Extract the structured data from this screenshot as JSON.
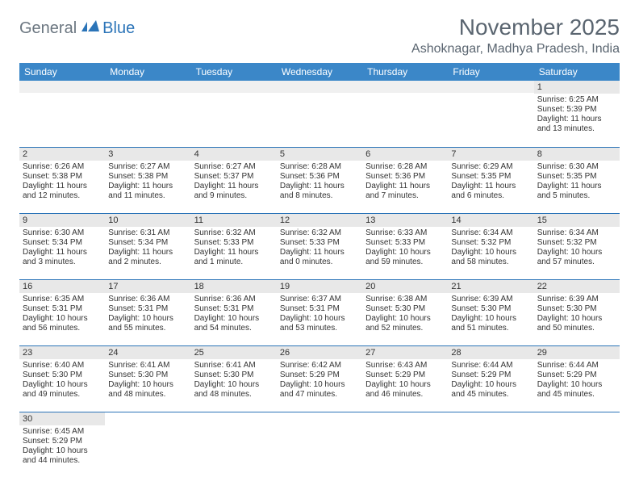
{
  "logo": {
    "general": "General",
    "blue": "Blue"
  },
  "title": "November 2025",
  "location": "Ashoknagar, Madhya Pradesh, India",
  "colors": {
    "header_bg": "#3b87c8",
    "header_text": "#ffffff",
    "border": "#2b74b8",
    "daynum_bg": "#e8e8e8",
    "logo_gray": "#6b7680",
    "logo_blue": "#2b74b8",
    "title_color": "#5a6570",
    "body_text": "#333333",
    "page_bg": "#ffffff"
  },
  "typography": {
    "title_fontsize": 28,
    "location_fontsize": 16,
    "header_fontsize": 12,
    "daynum_fontsize": 11,
    "body_fontsize": 10,
    "logo_fontsize": 20
  },
  "day_headers": [
    "Sunday",
    "Monday",
    "Tuesday",
    "Wednesday",
    "Thursday",
    "Friday",
    "Saturday"
  ],
  "weeks": [
    [
      null,
      null,
      null,
      null,
      null,
      null,
      {
        "n": "1",
        "sr": "Sunrise: 6:25 AM",
        "ss": "Sunset: 5:39 PM",
        "dl": "Daylight: 11 hours and 13 minutes."
      }
    ],
    [
      {
        "n": "2",
        "sr": "Sunrise: 6:26 AM",
        "ss": "Sunset: 5:38 PM",
        "dl": "Daylight: 11 hours and 12 minutes."
      },
      {
        "n": "3",
        "sr": "Sunrise: 6:27 AM",
        "ss": "Sunset: 5:38 PM",
        "dl": "Daylight: 11 hours and 11 minutes."
      },
      {
        "n": "4",
        "sr": "Sunrise: 6:27 AM",
        "ss": "Sunset: 5:37 PM",
        "dl": "Daylight: 11 hours and 9 minutes."
      },
      {
        "n": "5",
        "sr": "Sunrise: 6:28 AM",
        "ss": "Sunset: 5:36 PM",
        "dl": "Daylight: 11 hours and 8 minutes."
      },
      {
        "n": "6",
        "sr": "Sunrise: 6:28 AM",
        "ss": "Sunset: 5:36 PM",
        "dl": "Daylight: 11 hours and 7 minutes."
      },
      {
        "n": "7",
        "sr": "Sunrise: 6:29 AM",
        "ss": "Sunset: 5:35 PM",
        "dl": "Daylight: 11 hours and 6 minutes."
      },
      {
        "n": "8",
        "sr": "Sunrise: 6:30 AM",
        "ss": "Sunset: 5:35 PM",
        "dl": "Daylight: 11 hours and 5 minutes."
      }
    ],
    [
      {
        "n": "9",
        "sr": "Sunrise: 6:30 AM",
        "ss": "Sunset: 5:34 PM",
        "dl": "Daylight: 11 hours and 3 minutes."
      },
      {
        "n": "10",
        "sr": "Sunrise: 6:31 AM",
        "ss": "Sunset: 5:34 PM",
        "dl": "Daylight: 11 hours and 2 minutes."
      },
      {
        "n": "11",
        "sr": "Sunrise: 6:32 AM",
        "ss": "Sunset: 5:33 PM",
        "dl": "Daylight: 11 hours and 1 minute."
      },
      {
        "n": "12",
        "sr": "Sunrise: 6:32 AM",
        "ss": "Sunset: 5:33 PM",
        "dl": "Daylight: 11 hours and 0 minutes."
      },
      {
        "n": "13",
        "sr": "Sunrise: 6:33 AM",
        "ss": "Sunset: 5:33 PM",
        "dl": "Daylight: 10 hours and 59 minutes."
      },
      {
        "n": "14",
        "sr": "Sunrise: 6:34 AM",
        "ss": "Sunset: 5:32 PM",
        "dl": "Daylight: 10 hours and 58 minutes."
      },
      {
        "n": "15",
        "sr": "Sunrise: 6:34 AM",
        "ss": "Sunset: 5:32 PM",
        "dl": "Daylight: 10 hours and 57 minutes."
      }
    ],
    [
      {
        "n": "16",
        "sr": "Sunrise: 6:35 AM",
        "ss": "Sunset: 5:31 PM",
        "dl": "Daylight: 10 hours and 56 minutes."
      },
      {
        "n": "17",
        "sr": "Sunrise: 6:36 AM",
        "ss": "Sunset: 5:31 PM",
        "dl": "Daylight: 10 hours and 55 minutes."
      },
      {
        "n": "18",
        "sr": "Sunrise: 6:36 AM",
        "ss": "Sunset: 5:31 PM",
        "dl": "Daylight: 10 hours and 54 minutes."
      },
      {
        "n": "19",
        "sr": "Sunrise: 6:37 AM",
        "ss": "Sunset: 5:31 PM",
        "dl": "Daylight: 10 hours and 53 minutes."
      },
      {
        "n": "20",
        "sr": "Sunrise: 6:38 AM",
        "ss": "Sunset: 5:30 PM",
        "dl": "Daylight: 10 hours and 52 minutes."
      },
      {
        "n": "21",
        "sr": "Sunrise: 6:39 AM",
        "ss": "Sunset: 5:30 PM",
        "dl": "Daylight: 10 hours and 51 minutes."
      },
      {
        "n": "22",
        "sr": "Sunrise: 6:39 AM",
        "ss": "Sunset: 5:30 PM",
        "dl": "Daylight: 10 hours and 50 minutes."
      }
    ],
    [
      {
        "n": "23",
        "sr": "Sunrise: 6:40 AM",
        "ss": "Sunset: 5:30 PM",
        "dl": "Daylight: 10 hours and 49 minutes."
      },
      {
        "n": "24",
        "sr": "Sunrise: 6:41 AM",
        "ss": "Sunset: 5:30 PM",
        "dl": "Daylight: 10 hours and 48 minutes."
      },
      {
        "n": "25",
        "sr": "Sunrise: 6:41 AM",
        "ss": "Sunset: 5:30 PM",
        "dl": "Daylight: 10 hours and 48 minutes."
      },
      {
        "n": "26",
        "sr": "Sunrise: 6:42 AM",
        "ss": "Sunset: 5:29 PM",
        "dl": "Daylight: 10 hours and 47 minutes."
      },
      {
        "n": "27",
        "sr": "Sunrise: 6:43 AM",
        "ss": "Sunset: 5:29 PM",
        "dl": "Daylight: 10 hours and 46 minutes."
      },
      {
        "n": "28",
        "sr": "Sunrise: 6:44 AM",
        "ss": "Sunset: 5:29 PM",
        "dl": "Daylight: 10 hours and 45 minutes."
      },
      {
        "n": "29",
        "sr": "Sunrise: 6:44 AM",
        "ss": "Sunset: 5:29 PM",
        "dl": "Daylight: 10 hours and 45 minutes."
      }
    ],
    [
      {
        "n": "30",
        "sr": "Sunrise: 6:45 AM",
        "ss": "Sunset: 5:29 PM",
        "dl": "Daylight: 10 hours and 44 minutes."
      },
      null,
      null,
      null,
      null,
      null,
      null
    ]
  ]
}
